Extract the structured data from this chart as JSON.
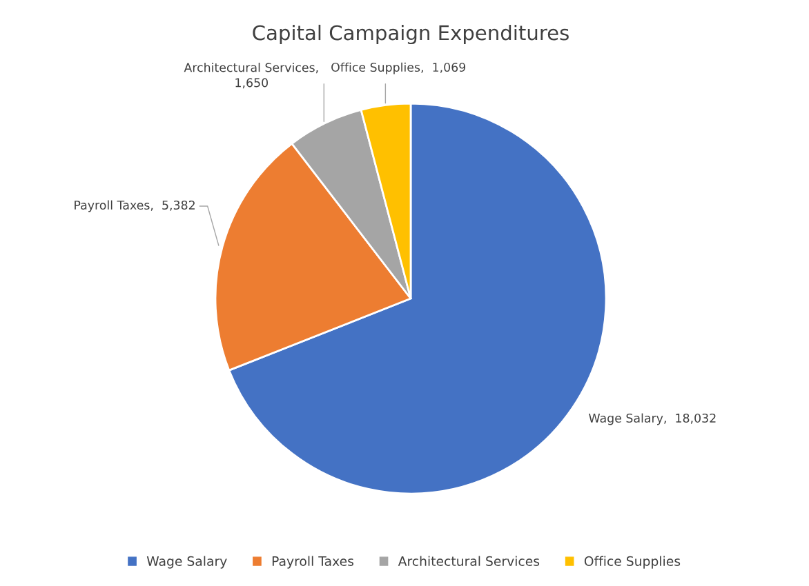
{
  "chart_data": {
    "type": "pie",
    "title": "Capital Campaign Expenditures",
    "categories": [
      "Wage Salary",
      "Payroll Taxes",
      "Architectural Services",
      "Office Supplies"
    ],
    "values": [
      18032,
      5382,
      1650,
      1069
    ],
    "colors": [
      "#4472c4",
      "#ed7d31",
      "#a5a5a5",
      "#ffc000"
    ],
    "value_labels": [
      "Wage Salary,  18,032",
      "Payroll Taxes,  5,382",
      "Architectural Services,\n1,650",
      "Office Supplies,  1,069"
    ],
    "legend": "bottom"
  }
}
